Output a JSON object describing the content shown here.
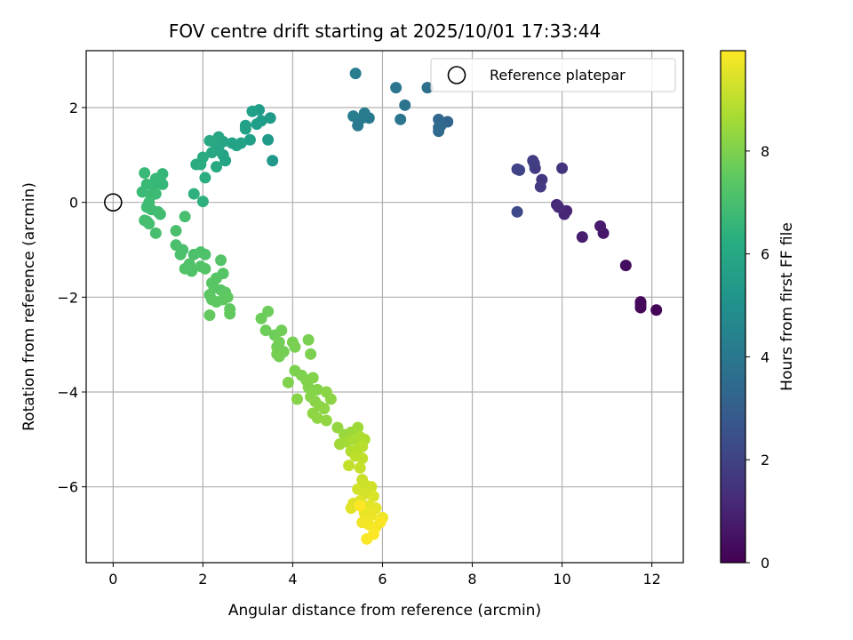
{
  "chart_data": {
    "type": "scatter",
    "title": "FOV centre drift starting at 2025/10/01 17:33:44",
    "xlabel": "Angular distance from reference (arcmin)",
    "ylabel": "Rotation from reference (arcmin)",
    "xlim": [
      -0.6,
      12.7
    ],
    "ylim": [
      -7.6,
      3.2
    ],
    "xticks": [
      0,
      2,
      4,
      6,
      8,
      10,
      12
    ],
    "yticks": [
      -6,
      -4,
      -2,
      0,
      2
    ],
    "grid": true,
    "legend": {
      "position": "top-right",
      "entries": [
        {
          "label": "Reference platepar",
          "marker": "open-circle"
        }
      ]
    },
    "reference_point": {
      "x": 0,
      "y": 0
    },
    "colorbar": {
      "label": "Hours from first FF file",
      "range": [
        0,
        9.95
      ],
      "ticks": [
        0,
        2,
        4,
        6,
        8
      ],
      "colormap": "viridis"
    },
    "point_color_key": "hours",
    "points": [
      {
        "x": 12.1,
        "y": -2.27,
        "hours": 0.1
      },
      {
        "x": 11.75,
        "y": -2.22,
        "hours": 0.15
      },
      {
        "x": 11.75,
        "y": -2.15,
        "hours": 0.2
      },
      {
        "x": 11.75,
        "y": -2.1,
        "hours": 0.25
      },
      {
        "x": 11.42,
        "y": -1.33,
        "hours": 0.35
      },
      {
        "x": 10.92,
        "y": -0.65,
        "hours": 0.6
      },
      {
        "x": 10.85,
        "y": -0.5,
        "hours": 0.7
      },
      {
        "x": 10.45,
        "y": -0.73,
        "hours": 0.8
      },
      {
        "x": 10.1,
        "y": -0.18,
        "hours": 1.0
      },
      {
        "x": 10.05,
        "y": -0.25,
        "hours": 1.05
      },
      {
        "x": 9.88,
        "y": -0.05,
        "hours": 1.15
      },
      {
        "x": 9.92,
        "y": -0.1,
        "hours": 1.2
      },
      {
        "x": 10.0,
        "y": 0.72,
        "hours": 1.5
      },
      {
        "x": 9.55,
        "y": 0.48,
        "hours": 1.6
      },
      {
        "x": 9.52,
        "y": 0.33,
        "hours": 1.7
      },
      {
        "x": 9.4,
        "y": 0.72,
        "hours": 1.75
      },
      {
        "x": 9.35,
        "y": 0.88,
        "hours": 1.8
      },
      {
        "x": 9.38,
        "y": 0.82,
        "hours": 1.85
      },
      {
        "x": 9.0,
        "y": 0.7,
        "hours": 1.95
      },
      {
        "x": 9.05,
        "y": 0.68,
        "hours": 2.0
      },
      {
        "x": 9.0,
        "y": -0.2,
        "hours": 2.2
      },
      {
        "x": 7.45,
        "y": 1.7,
        "hours": 3.2
      },
      {
        "x": 7.3,
        "y": 1.62,
        "hours": 3.3
      },
      {
        "x": 7.25,
        "y": 1.75,
        "hours": 3.35
      },
      {
        "x": 7.25,
        "y": 1.5,
        "hours": 3.4
      },
      {
        "x": 7.25,
        "y": 1.58,
        "hours": 3.45
      },
      {
        "x": 7.0,
        "y": 2.42,
        "hours": 3.6
      },
      {
        "x": 6.5,
        "y": 2.05,
        "hours": 3.8
      },
      {
        "x": 6.4,
        "y": 1.75,
        "hours": 3.85
      },
      {
        "x": 6.3,
        "y": 2.42,
        "hours": 3.9
      },
      {
        "x": 5.7,
        "y": 1.78,
        "hours": 4.0
      },
      {
        "x": 5.55,
        "y": 1.78,
        "hours": 4.05
      },
      {
        "x": 5.45,
        "y": 1.62,
        "hours": 4.1
      },
      {
        "x": 5.6,
        "y": 1.88,
        "hours": 4.15
      },
      {
        "x": 5.35,
        "y": 1.82,
        "hours": 4.2
      },
      {
        "x": 5.4,
        "y": 2.72,
        "hours": 4.25
      },
      {
        "x": 3.55,
        "y": 0.88,
        "hours": 5.3
      },
      {
        "x": 3.45,
        "y": 1.32,
        "hours": 5.35
      },
      {
        "x": 3.5,
        "y": 1.78,
        "hours": 5.4
      },
      {
        "x": 3.3,
        "y": 1.72,
        "hours": 5.45
      },
      {
        "x": 3.25,
        "y": 1.95,
        "hours": 5.5
      },
      {
        "x": 3.2,
        "y": 1.65,
        "hours": 5.55
      },
      {
        "x": 3.1,
        "y": 1.92,
        "hours": 5.6
      },
      {
        "x": 3.05,
        "y": 1.32,
        "hours": 5.62
      },
      {
        "x": 2.95,
        "y": 1.62,
        "hours": 5.65
      },
      {
        "x": 2.95,
        "y": 1.55,
        "hours": 5.68
      },
      {
        "x": 2.85,
        "y": 1.25,
        "hours": 5.7
      },
      {
        "x": 2.75,
        "y": 1.2,
        "hours": 5.72
      },
      {
        "x": 2.65,
        "y": 1.25,
        "hours": 5.75
      },
      {
        "x": 2.5,
        "y": 0.88,
        "hours": 5.78
      },
      {
        "x": 2.45,
        "y": 1.0,
        "hours": 5.8
      },
      {
        "x": 2.45,
        "y": 1.28,
        "hours": 5.82
      },
      {
        "x": 2.35,
        "y": 1.1,
        "hours": 5.85
      },
      {
        "x": 2.35,
        "y": 1.38,
        "hours": 5.88
      },
      {
        "x": 2.3,
        "y": 1.12,
        "hours": 5.9
      },
      {
        "x": 2.25,
        "y": 1.28,
        "hours": 5.92
      },
      {
        "x": 2.2,
        "y": 1.05,
        "hours": 5.95
      },
      {
        "x": 2.15,
        "y": 1.3,
        "hours": 5.97
      },
      {
        "x": 2.3,
        "y": 0.75,
        "hours": 6.0
      },
      {
        "x": 2.0,
        "y": 0.95,
        "hours": 6.05
      },
      {
        "x": 1.95,
        "y": 0.8,
        "hours": 6.1
      },
      {
        "x": 1.85,
        "y": 0.8,
        "hours": 6.15
      },
      {
        "x": 2.05,
        "y": 0.52,
        "hours": 6.2
      },
      {
        "x": 2.0,
        "y": 0.02,
        "hours": 6.3
      },
      {
        "x": 1.8,
        "y": 0.18,
        "hours": 6.35
      },
      {
        "x": 1.1,
        "y": 0.6,
        "hours": 6.6
      },
      {
        "x": 1.1,
        "y": 0.38,
        "hours": 6.62
      },
      {
        "x": 1.05,
        "y": 0.52,
        "hours": 6.65
      },
      {
        "x": 0.95,
        "y": 0.5,
        "hours": 6.68
      },
      {
        "x": 0.9,
        "y": 0.35,
        "hours": 6.7
      },
      {
        "x": 0.75,
        "y": 0.38,
        "hours": 6.72
      },
      {
        "x": 0.7,
        "y": 0.62,
        "hours": 6.74
      },
      {
        "x": 0.65,
        "y": 0.22,
        "hours": 6.76
      },
      {
        "x": 0.85,
        "y": 0.15,
        "hours": 6.78
      },
      {
        "x": 0.95,
        "y": 0.18,
        "hours": 6.8
      },
      {
        "x": 0.8,
        "y": 0.0,
        "hours": 6.82
      },
      {
        "x": 0.75,
        "y": -0.1,
        "hours": 6.84
      },
      {
        "x": 0.85,
        "y": -0.15,
        "hours": 6.86
      },
      {
        "x": 1.0,
        "y": -0.2,
        "hours": 6.88
      },
      {
        "x": 1.05,
        "y": -0.25,
        "hours": 6.9
      },
      {
        "x": 0.75,
        "y": -0.4,
        "hours": 6.92
      },
      {
        "x": 0.7,
        "y": -0.38,
        "hours": 6.94
      },
      {
        "x": 0.8,
        "y": -0.45,
        "hours": 6.96
      },
      {
        "x": 0.95,
        "y": -0.65,
        "hours": 6.98
      },
      {
        "x": 1.6,
        "y": -0.3,
        "hours": 7.0
      },
      {
        "x": 1.4,
        "y": -0.6,
        "hours": 7.02
      },
      {
        "x": 1.4,
        "y": -0.9,
        "hours": 7.04
      },
      {
        "x": 1.55,
        "y": -1.0,
        "hours": 7.06
      },
      {
        "x": 1.5,
        "y": -1.1,
        "hours": 7.08
      },
      {
        "x": 1.8,
        "y": -1.1,
        "hours": 7.1
      },
      {
        "x": 1.95,
        "y": -1.05,
        "hours": 7.12
      },
      {
        "x": 2.05,
        "y": -1.1,
        "hours": 7.14
      },
      {
        "x": 1.7,
        "y": -1.3,
        "hours": 7.16
      },
      {
        "x": 1.6,
        "y": -1.4,
        "hours": 7.18
      },
      {
        "x": 1.75,
        "y": -1.45,
        "hours": 7.2
      },
      {
        "x": 1.95,
        "y": -1.35,
        "hours": 7.22
      },
      {
        "x": 2.05,
        "y": -1.4,
        "hours": 7.24
      },
      {
        "x": 2.4,
        "y": -1.22,
        "hours": 7.26
      },
      {
        "x": 2.45,
        "y": -1.5,
        "hours": 7.28
      },
      {
        "x": 2.3,
        "y": -1.6,
        "hours": 7.3
      },
      {
        "x": 2.2,
        "y": -1.7,
        "hours": 7.32
      },
      {
        "x": 2.25,
        "y": -1.8,
        "hours": 7.34
      },
      {
        "x": 2.4,
        "y": -1.85,
        "hours": 7.36
      },
      {
        "x": 2.5,
        "y": -1.9,
        "hours": 7.38
      },
      {
        "x": 2.15,
        "y": -1.95,
        "hours": 7.4
      },
      {
        "x": 2.2,
        "y": -2.05,
        "hours": 7.42
      },
      {
        "x": 2.3,
        "y": -2.1,
        "hours": 7.44
      },
      {
        "x": 2.45,
        "y": -2.05,
        "hours": 7.46
      },
      {
        "x": 2.55,
        "y": -2.0,
        "hours": 7.48
      },
      {
        "x": 2.6,
        "y": -2.25,
        "hours": 7.5
      },
      {
        "x": 2.6,
        "y": -2.35,
        "hours": 7.52
      },
      {
        "x": 2.15,
        "y": -2.38,
        "hours": 7.54
      },
      {
        "x": 3.3,
        "y": -2.45,
        "hours": 7.7
      },
      {
        "x": 3.45,
        "y": -2.3,
        "hours": 7.72
      },
      {
        "x": 3.4,
        "y": -2.7,
        "hours": 7.74
      },
      {
        "x": 3.6,
        "y": -2.8,
        "hours": 7.76
      },
      {
        "x": 3.75,
        "y": -2.7,
        "hours": 7.78
      },
      {
        "x": 3.7,
        "y": -2.95,
        "hours": 7.8
      },
      {
        "x": 3.65,
        "y": -3.05,
        "hours": 7.82
      },
      {
        "x": 3.8,
        "y": -3.15,
        "hours": 7.84
      },
      {
        "x": 3.7,
        "y": -3.25,
        "hours": 7.86
      },
      {
        "x": 3.65,
        "y": -3.2,
        "hours": 7.88
      },
      {
        "x": 4.0,
        "y": -2.95,
        "hours": 7.9
      },
      {
        "x": 4.05,
        "y": -3.05,
        "hours": 7.92
      },
      {
        "x": 4.35,
        "y": -2.9,
        "hours": 7.94
      },
      {
        "x": 4.4,
        "y": -3.2,
        "hours": 7.96
      },
      {
        "x": 4.05,
        "y": -3.55,
        "hours": 7.98
      },
      {
        "x": 4.2,
        "y": -3.65,
        "hours": 8.0
      },
      {
        "x": 3.9,
        "y": -3.8,
        "hours": 8.02
      },
      {
        "x": 4.3,
        "y": -3.75,
        "hours": 8.04
      },
      {
        "x": 4.45,
        "y": -3.7,
        "hours": 8.06
      },
      {
        "x": 4.35,
        "y": -3.9,
        "hours": 8.08
      },
      {
        "x": 4.55,
        "y": -3.95,
        "hours": 8.1
      },
      {
        "x": 4.1,
        "y": -4.15,
        "hours": 8.12
      },
      {
        "x": 4.4,
        "y": -4.1,
        "hours": 8.14
      },
      {
        "x": 4.5,
        "y": -4.2,
        "hours": 8.16
      },
      {
        "x": 4.6,
        "y": -4.3,
        "hours": 8.18
      },
      {
        "x": 4.75,
        "y": -4.0,
        "hours": 8.2
      },
      {
        "x": 4.85,
        "y": -4.15,
        "hours": 8.22
      },
      {
        "x": 4.7,
        "y": -4.35,
        "hours": 8.24
      },
      {
        "x": 4.45,
        "y": -4.45,
        "hours": 8.26
      },
      {
        "x": 4.55,
        "y": -4.55,
        "hours": 8.28
      },
      {
        "x": 4.75,
        "y": -4.6,
        "hours": 8.3
      },
      {
        "x": 5.0,
        "y": -4.75,
        "hours": 8.35
      },
      {
        "x": 5.15,
        "y": -4.9,
        "hours": 8.4
      },
      {
        "x": 5.3,
        "y": -4.85,
        "hours": 8.45
      },
      {
        "x": 5.45,
        "y": -4.75,
        "hours": 8.5
      },
      {
        "x": 5.05,
        "y": -5.1,
        "hours": 8.55
      },
      {
        "x": 5.2,
        "y": -5.05,
        "hours": 8.6
      },
      {
        "x": 5.35,
        "y": -5.0,
        "hours": 8.65
      },
      {
        "x": 5.5,
        "y": -4.95,
        "hours": 8.7
      },
      {
        "x": 5.6,
        "y": -5.0,
        "hours": 8.75
      },
      {
        "x": 5.3,
        "y": -5.25,
        "hours": 8.8
      },
      {
        "x": 5.45,
        "y": -5.2,
        "hours": 8.85
      },
      {
        "x": 5.55,
        "y": -5.15,
        "hours": 8.9
      },
      {
        "x": 5.4,
        "y": -5.35,
        "hours": 8.95
      },
      {
        "x": 5.55,
        "y": -5.4,
        "hours": 9.0
      },
      {
        "x": 5.25,
        "y": -5.55,
        "hours": 9.05
      },
      {
        "x": 5.5,
        "y": -5.6,
        "hours": 9.1
      },
      {
        "x": 5.55,
        "y": -5.85,
        "hours": 9.15
      },
      {
        "x": 5.6,
        "y": -5.95,
        "hours": 9.2
      },
      {
        "x": 5.75,
        "y": -6.0,
        "hours": 9.25
      },
      {
        "x": 5.45,
        "y": -6.05,
        "hours": 9.3
      },
      {
        "x": 5.6,
        "y": -6.15,
        "hours": 9.35
      },
      {
        "x": 5.8,
        "y": -6.2,
        "hours": 9.4
      },
      {
        "x": 5.5,
        "y": -6.3,
        "hours": 9.45
      },
      {
        "x": 5.35,
        "y": -6.35,
        "hours": 9.5
      },
      {
        "x": 5.3,
        "y": -6.45,
        "hours": 9.52
      },
      {
        "x": 5.7,
        "y": -6.4,
        "hours": 9.55
      },
      {
        "x": 5.85,
        "y": -6.45,
        "hours": 9.6
      },
      {
        "x": 5.6,
        "y": -6.55,
        "hours": 9.65
      },
      {
        "x": 5.75,
        "y": -6.6,
        "hours": 9.7
      },
      {
        "x": 6.0,
        "y": -6.65,
        "hours": 9.72
      },
      {
        "x": 5.55,
        "y": -6.75,
        "hours": 9.75
      },
      {
        "x": 5.7,
        "y": -6.8,
        "hours": 9.8
      },
      {
        "x": 5.85,
        "y": -6.85,
        "hours": 9.85
      },
      {
        "x": 5.95,
        "y": -6.75,
        "hours": 9.88
      },
      {
        "x": 5.65,
        "y": -7.1,
        "hours": 9.9
      },
      {
        "x": 5.8,
        "y": -7.0,
        "hours": 9.92
      },
      {
        "x": 5.5,
        "y": -6.4,
        "hours": 9.95
      }
    ]
  }
}
